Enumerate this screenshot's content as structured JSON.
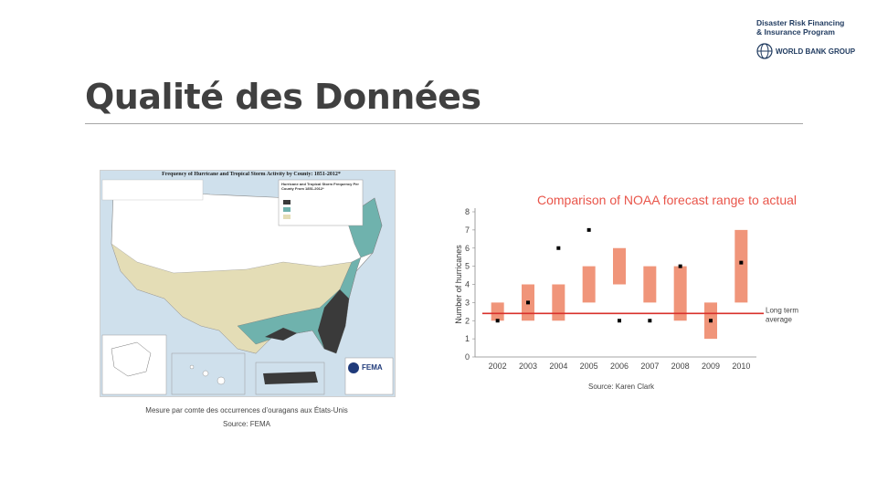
{
  "logo": {
    "line1": "Disaster Risk Financing",
    "line2": "& Insurance Program",
    "org": "WORLD BANK GROUP"
  },
  "slide": {
    "title": "Qualité des Données"
  },
  "map_figure": {
    "title": "Frequency of Hurricane and Tropical Storm Activity by County: 1851-2012*",
    "legend_title": "Hurricane and Tropical Storm Frequency Per County From 1851-2012*",
    "brand": "FEMA",
    "caption_line1": "Mesure par comte des occurrences d’ouragans aux États-Unis",
    "caption_line2": "Source: FEMA"
  },
  "colors": {
    "title": "#404040",
    "range_bar": "#f0957a",
    "long_term_line": "#d9302b",
    "chart_title": "#e9554a",
    "map_high": "#3a3a3a",
    "map_teal": "#6fb2ad",
    "map_tan": "#e4ddb6"
  },
  "chart_data": {
    "type": "bar",
    "title": "Comparison of NOAA forecast range to actual",
    "ylabel": "Number of hurricanes",
    "xlabel": "",
    "categories": [
      "2002",
      "2003",
      "2004",
      "2005",
      "2006",
      "2007",
      "2008",
      "2009",
      "2010"
    ],
    "forecast_range": [
      [
        2,
        3
      ],
      [
        2,
        4
      ],
      [
        2,
        4
      ],
      [
        3,
        5
      ],
      [
        4,
        6
      ],
      [
        3,
        5
      ],
      [
        2,
        5
      ],
      [
        1,
        3
      ],
      [
        3,
        7
      ]
    ],
    "actual": [
      2,
      3,
      6,
      7,
      2,
      2,
      5,
      2,
      5.2
    ],
    "long_term_average": 2.4,
    "long_term_label_line1": "Long term",
    "long_term_label_line2": "average",
    "ylim": [
      0,
      8
    ],
    "yticks": [
      "0",
      "1",
      "2",
      "3",
      "4",
      "5",
      "6",
      "7",
      "8"
    ],
    "grid": false,
    "source": "Source: Karen Clark"
  }
}
